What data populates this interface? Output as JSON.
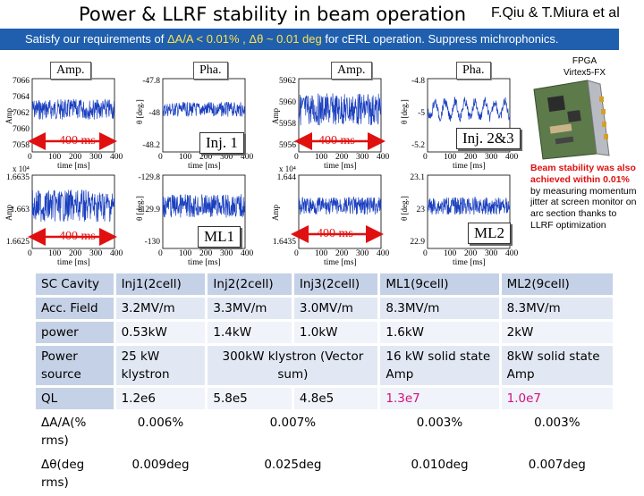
{
  "header": {
    "title": "Power & LLRF stability in beam operation",
    "authors": "F.Qiu & T.Miura et al"
  },
  "banner": {
    "prefix": "Satisfy our requirements of ",
    "amp_req": "ΔA/A < 0.01% , Δθ ~ 0.01 deg",
    "suffix": " for cERL operation. Suppress michrophonics."
  },
  "plots": {
    "amp_label": "Amp.",
    "pha_label": "Pha.",
    "amp_axis": "Amp",
    "pha_axis": "θ [deg.]",
    "time_axis": "time [ms]",
    "x_ticks": [
      "0",
      "100",
      "200",
      "300",
      "400"
    ],
    "callout_inj1": "Inj. 1",
    "callout_inj23": "Inj. 2&3",
    "callout_ml1": "ML1",
    "callout_ml2": "ML2",
    "dur_a": "400 ms",
    "dur_b": "400 ms",
    "dur_c": "400 ms",
    "dur_d": "400 ms",
    "exp_a": "x 10⁴",
    "exp_b": "x 10⁴",
    "p1_ticks": [
      "7066",
      "7064",
      "7062",
      "7060",
      "7058"
    ],
    "p2_ticks": [
      "-47.8",
      "-48",
      "-48.2"
    ],
    "p3_ticks": [
      "5962",
      "5960",
      "5958",
      "5956"
    ],
    "p4_ticks": [
      "-4.8",
      "-5",
      "-5.2"
    ],
    "p5_ticks": [
      "1.6635",
      "1.663",
      "1.6625"
    ],
    "p6_ticks": [
      "-129.8",
      "-129.9",
      "-130"
    ],
    "p7_ticks": [
      "1.644",
      "1.6435"
    ],
    "p8_ticks": [
      "23.1",
      "23",
      "22.9"
    ]
  },
  "side": {
    "fpga": "FPGA",
    "fpga_model": "Virtex5-FX",
    "note_bold": "Beam stability was also achieved within 0.01%",
    "note_rest": " by measuring momentum jitter at screen monitor on arc section thanks to LLRF optimization"
  },
  "table": {
    "h_cavity": "SC Cavity",
    "h_inj1": "Inj1(2cell)",
    "h_inj2": "Inj2(2cell)",
    "h_inj3": "Inj3(2cell)",
    "h_ml1": "ML1(9cell)",
    "h_ml2": "ML2(9cell)",
    "field_label": "Acc. Field",
    "field_inj1": "3.2MV/m",
    "field_inj2": "3.3MV/m",
    "field_inj3": "3.0MV/m",
    "field_ml1": "8.3MV/m",
    "field_ml2": "8.3MV/m",
    "power_label": "power",
    "power_inj1": "0.53kW",
    "power_inj2": "1.4kW",
    "power_inj3": "1.0kW",
    "power_ml1": "1.6kW",
    "power_ml2": "2kW",
    "source_label": "Power source",
    "source_inj1": "25 kW klystron",
    "source_inj23": "300kW klystron (Vector sum)",
    "source_ml1": "16 kW solid state Amp",
    "source_ml2": "8kW solid state Amp",
    "ql_label": "QL",
    "ql_inj1": "1.2e6",
    "ql_inj2": "5.8e5",
    "ql_inj3": "4.8e5",
    "ql_ml1": "1.3e7",
    "ql_ml2": "1.0e7",
    "amp_label": "ΔA/A(% rms)",
    "amp_inj1": "0.006%",
    "amp_inj23": "0.007%",
    "amp_ml1": "0.003%",
    "amp_ml2": "0.003%",
    "pha_label": "Δθ(deg rms)",
    "pha_inj1": "0.009deg",
    "pha_inj23": "0.025deg",
    "pha_ml1": "0.010deg",
    "pha_ml2": "0.007deg"
  },
  "colors": {
    "banner_bg": "#1f5fae",
    "banner_highlight": "#ffe24d",
    "signal": "#1a3fbf",
    "arrow": "#e01010",
    "table_header": "#c5d1e6",
    "emphasis_pink": "#d0127d"
  }
}
